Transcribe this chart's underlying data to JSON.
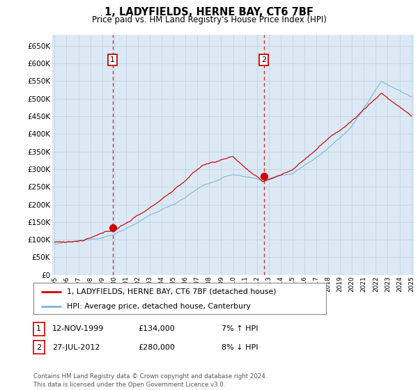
{
  "title": "1, LADYFIELDS, HERNE BAY, CT6 7BF",
  "subtitle": "Price paid vs. HM Land Registry's House Price Index (HPI)",
  "bg_color": "#dce9f5",
  "plot_bg_color": "#dce9f5",
  "outer_bg_color": "#ffffff",
  "hpi_color": "#7ab3d8",
  "price_color": "#cc0000",
  "marker_color": "#cc0000",
  "ylim": [
    0,
    680000
  ],
  "yticks": [
    0,
    50000,
    100000,
    150000,
    200000,
    250000,
    300000,
    350000,
    400000,
    450000,
    500000,
    550000,
    600000,
    650000
  ],
  "xstart_year": 1995,
  "xend_year": 2025,
  "sale1_year": 1999.87,
  "sale1_price": 134000,
  "sale2_year": 2012.58,
  "sale2_price": 280000,
  "legend_line1": "1, LADYFIELDS, HERNE BAY, CT6 7BF (detached house)",
  "legend_line2": "HPI: Average price, detached house, Canterbury",
  "table_row1": [
    "1",
    "12-NOV-1999",
    "£134,000",
    "7% ↑ HPI"
  ],
  "table_row2": [
    "2",
    "27-JUL-2012",
    "£280,000",
    "8% ↓ HPI"
  ],
  "footer": "Contains HM Land Registry data © Crown copyright and database right 2024.\nThis data is licensed under the Open Government Licence v3.0.",
  "hpi_keypoints_t": [
    0.0,
    0.083,
    0.166,
    0.25,
    0.333,
    0.416,
    0.5,
    0.583,
    0.666,
    0.75,
    0.833,
    0.916,
    1.0
  ],
  "hpi_keypoints_v": [
    87000,
    95000,
    115000,
    160000,
    200000,
    255000,
    285000,
    270000,
    290000,
    350000,
    430000,
    555000,
    510000
  ],
  "price_keypoints_t": [
    0.0,
    0.083,
    0.166,
    0.25,
    0.333,
    0.416,
    0.5,
    0.583,
    0.666,
    0.75,
    0.833,
    0.916,
    1.0
  ],
  "price_keypoints_v": [
    93000,
    98000,
    122000,
    175000,
    240000,
    310000,
    335000,
    260000,
    295000,
    370000,
    435000,
    515000,
    450000
  ]
}
